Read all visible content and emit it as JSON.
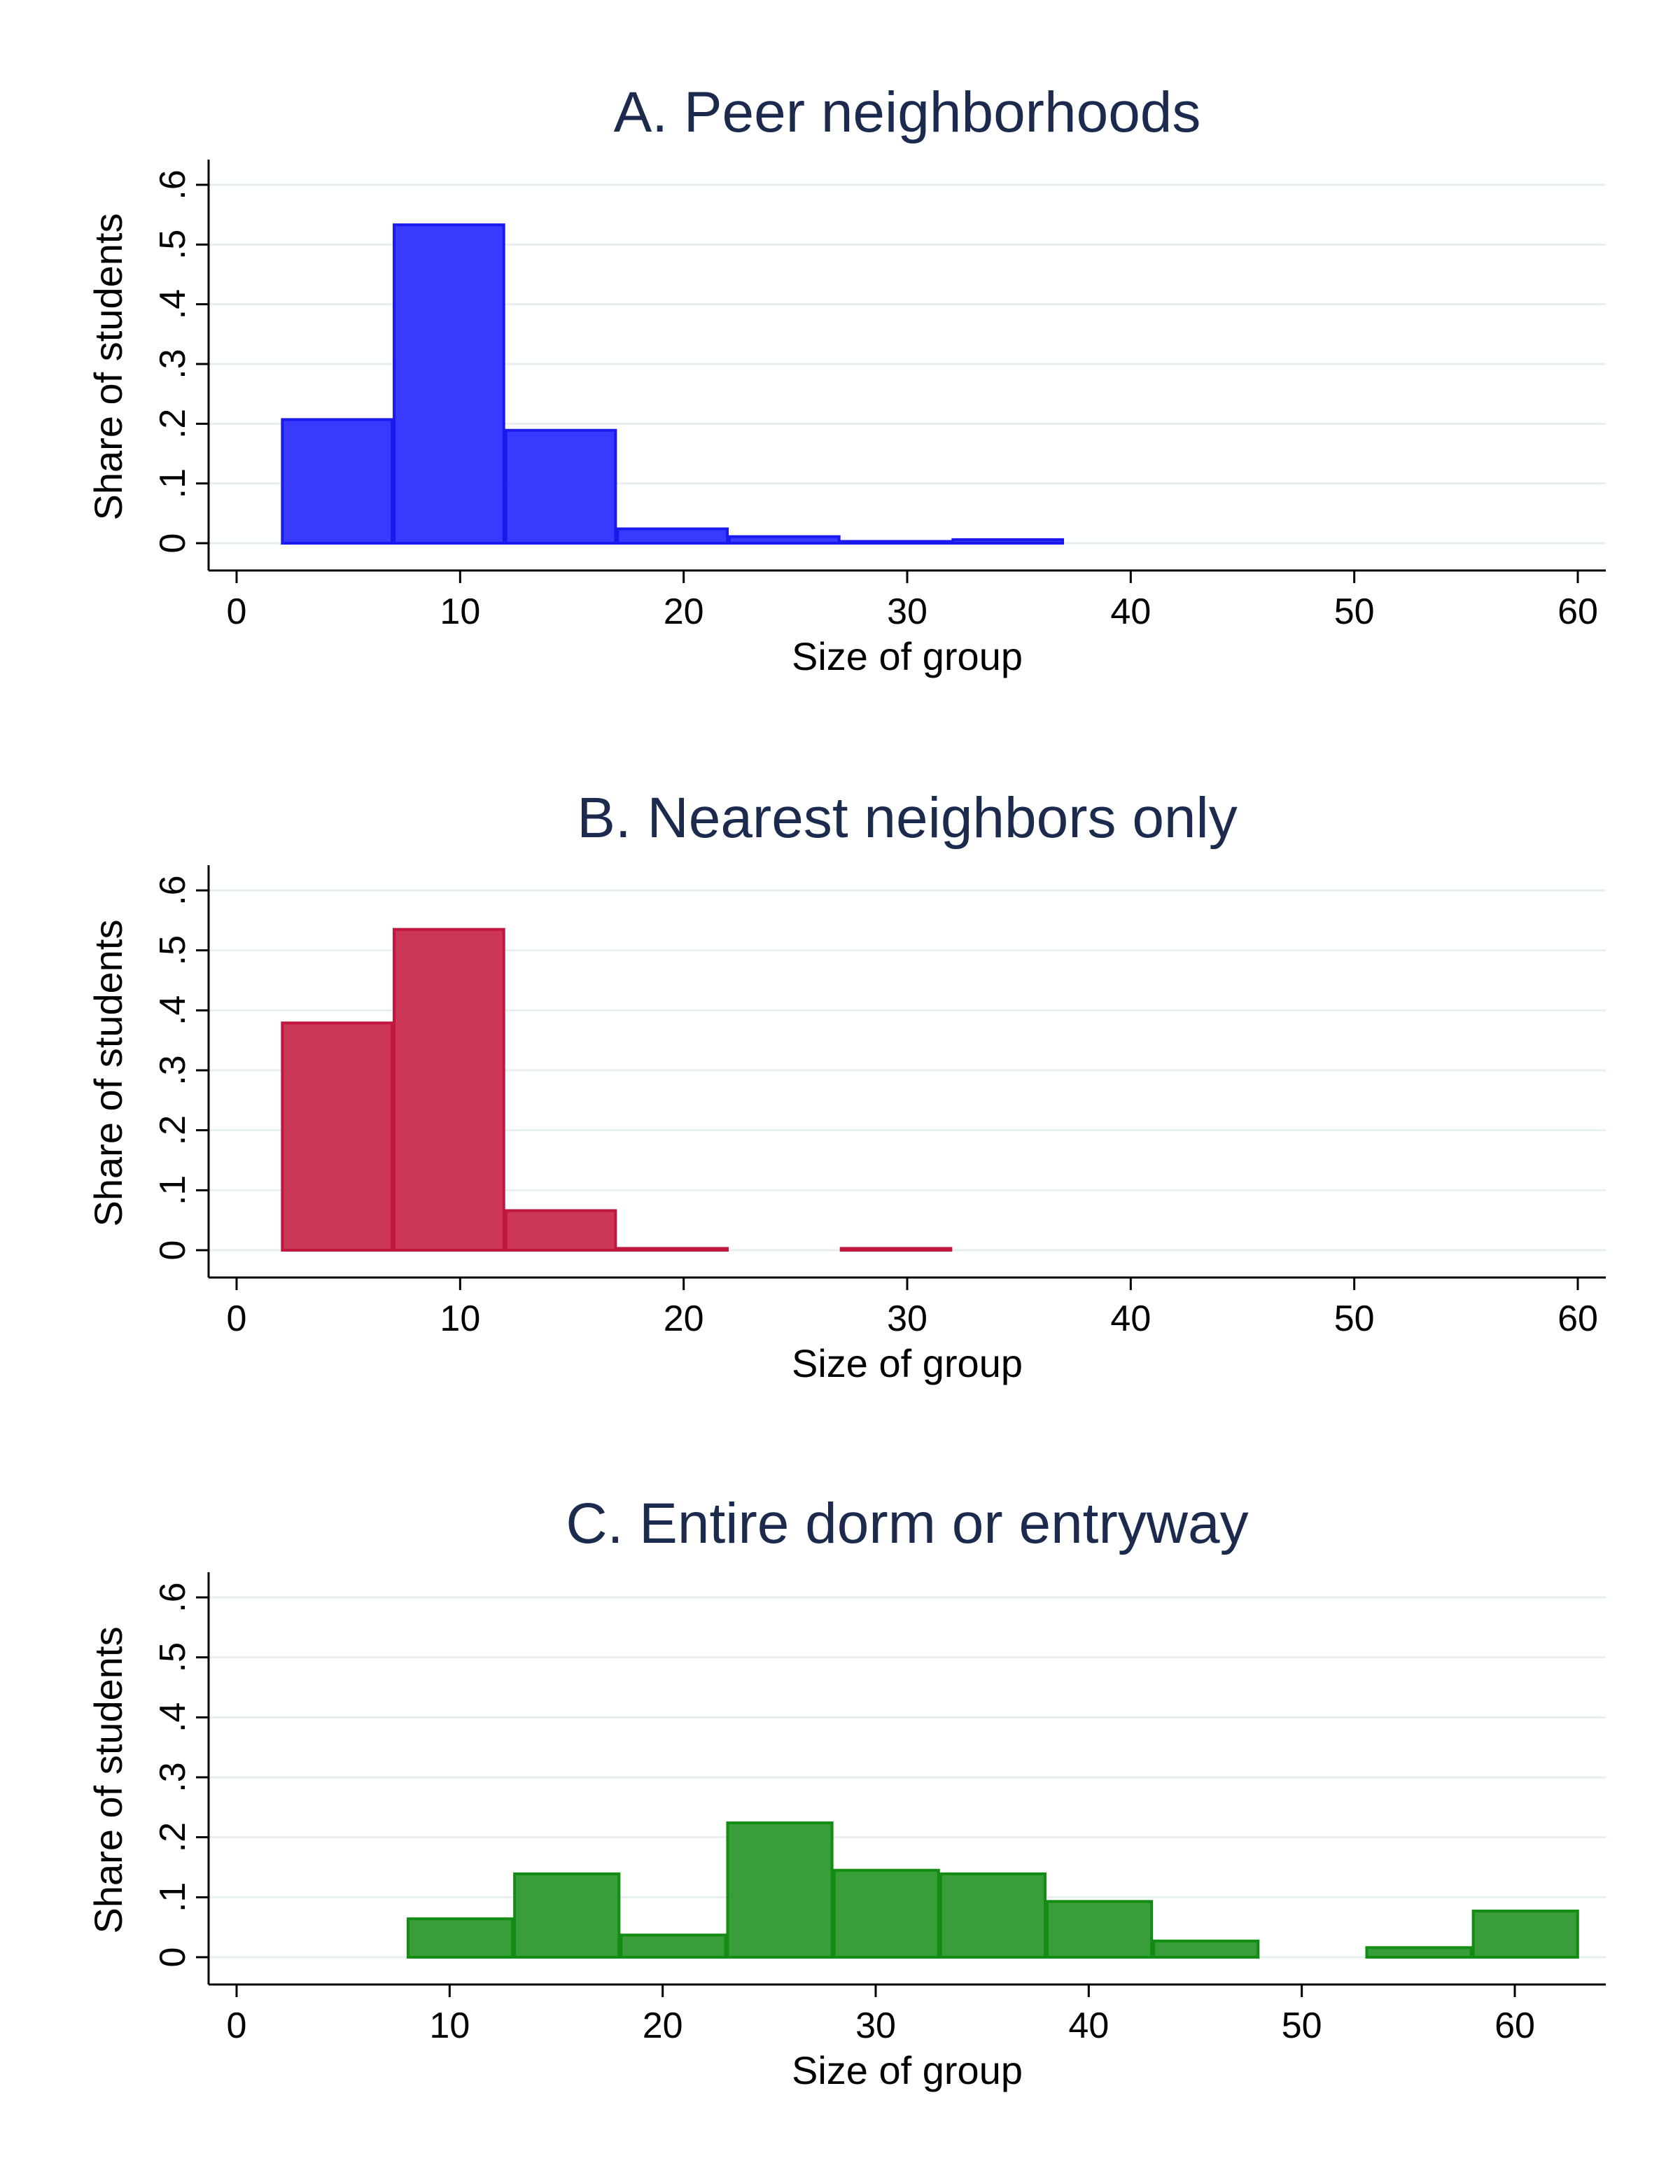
{
  "chart_data": [
    {
      "type": "bar",
      "title": "A. Peer neighborhoods",
      "xlabel": "Size of group",
      "ylabel": "Share of students",
      "xlim": [
        0,
        60
      ],
      "ylim": [
        0,
        0.6
      ],
      "xticks": [
        0,
        10,
        20,
        30,
        40,
        50,
        60
      ],
      "yticks": [
        0,
        0.1,
        0.2,
        0.3,
        0.4,
        0.5,
        0.6
      ],
      "xtick_labels": [
        "0",
        "10",
        "20",
        "30",
        "40",
        "50",
        "60"
      ],
      "ytick_labels": [
        "0",
        ".1",
        ".2",
        ".3",
        ".4",
        ".5",
        ".6"
      ],
      "bin_width": 5,
      "bins": [
        {
          "x_start": 2,
          "value": 0.207
        },
        {
          "x_start": 7,
          "value": 0.533
        },
        {
          "x_start": 12,
          "value": 0.189
        },
        {
          "x_start": 17,
          "value": 0.024
        },
        {
          "x_start": 22,
          "value": 0.011
        },
        {
          "x_start": 27,
          "value": 0.003
        },
        {
          "x_start": 32,
          "value": 0.006
        }
      ],
      "grid": true,
      "colors": {
        "fill": "#2b2bff",
        "stroke": "#1a1aee"
      }
    },
    {
      "type": "bar",
      "title": "B. Nearest neighbors only",
      "xlabel": "Size of group",
      "ylabel": "Share of students",
      "xlim": [
        0,
        60
      ],
      "ylim": [
        0,
        0.6
      ],
      "xticks": [
        0,
        10,
        20,
        30,
        40,
        50,
        60
      ],
      "yticks": [
        0,
        0.1,
        0.2,
        0.3,
        0.4,
        0.5,
        0.6
      ],
      "xtick_labels": [
        "0",
        "10",
        "20",
        "30",
        "40",
        "50",
        "60"
      ],
      "ytick_labels": [
        "0",
        ".1",
        ".2",
        ".3",
        ".4",
        ".5",
        ".6"
      ],
      "bin_width": 5,
      "bins": [
        {
          "x_start": 2,
          "value": 0.379
        },
        {
          "x_start": 7,
          "value": 0.535
        },
        {
          "x_start": 12,
          "value": 0.066
        },
        {
          "x_start": 17,
          "value": 0.003
        },
        {
          "x_start": 27,
          "value": 0.003
        }
      ],
      "grid": true,
      "colors": {
        "fill": "#c9284a",
        "stroke": "#c0173e"
      }
    },
    {
      "type": "bar",
      "title": "C. Entire dorm or entryway",
      "xlabel": "Size of group",
      "ylabel": "Share of students",
      "xlim": [
        0,
        64
      ],
      "ylim": [
        0,
        0.6
      ],
      "xticks": [
        0,
        10,
        20,
        30,
        40,
        50,
        60
      ],
      "yticks": [
        0,
        0.1,
        0.2,
        0.3,
        0.4,
        0.5,
        0.6
      ],
      "xtick_labels": [
        "0",
        "10",
        "20",
        "30",
        "40",
        "50",
        "60"
      ],
      "ytick_labels": [
        "0",
        ".1",
        ".2",
        ".3",
        ".4",
        ".5",
        ".6"
      ],
      "bin_width": 5,
      "bins": [
        {
          "x_start": 8,
          "value": 0.064
        },
        {
          "x_start": 13,
          "value": 0.139
        },
        {
          "x_start": 18,
          "value": 0.037
        },
        {
          "x_start": 23,
          "value": 0.224
        },
        {
          "x_start": 28,
          "value": 0.145
        },
        {
          "x_start": 33,
          "value": 0.139
        },
        {
          "x_start": 38,
          "value": 0.093
        },
        {
          "x_start": 43,
          "value": 0.027
        },
        {
          "x_start": 53,
          "value": 0.016
        },
        {
          "x_start": 58,
          "value": 0.077
        }
      ],
      "grid": true,
      "colors": {
        "fill": "#2a962a",
        "stroke": "#138c13"
      }
    }
  ]
}
